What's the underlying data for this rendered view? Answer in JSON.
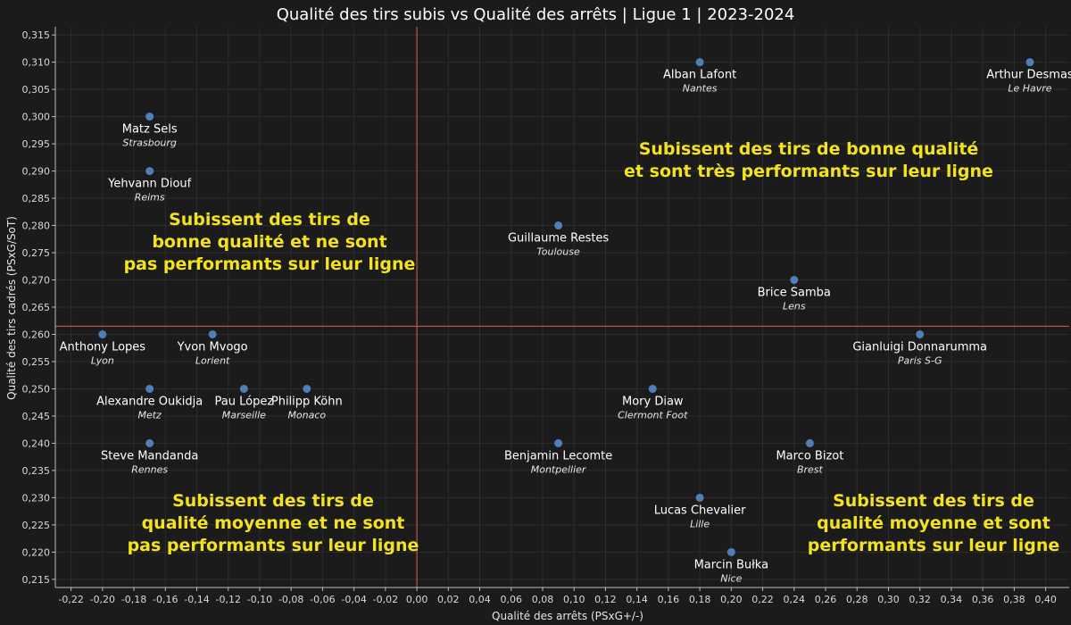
{
  "chart_data": {
    "type": "scatter",
    "title": "Qualité des tirs subis vs Qualité des arrêts | Ligue 1 | 2023-2024",
    "xlabel": "Qualité des arrêts (PSxG+/-)",
    "ylabel": "Qualité des tirs cadrés (PSxG/SoT)",
    "xlim": [
      -0.23,
      0.415
    ],
    "ylim": [
      0.2135,
      0.3165
    ],
    "x_ticks": [
      "-0,22",
      "-0,20",
      "-0,18",
      "-0,16",
      "-0,14",
      "-0,12",
      "-0,10",
      "-0,08",
      "-0,06",
      "-0,04",
      "-0,02",
      "0,00",
      "0,02",
      "0,04",
      "0,06",
      "0,08",
      "0,10",
      "0,12",
      "0,14",
      "0,16",
      "0,18",
      "0,20",
      "0,22",
      "0,24",
      "0,26",
      "0,28",
      "0,30",
      "0,32",
      "0,34",
      "0,36",
      "0,38",
      "0,40"
    ],
    "y_ticks": [
      "0,215",
      "0,220",
      "0,225",
      "0,230",
      "0,235",
      "0,240",
      "0,245",
      "0,250",
      "0,255",
      "0,260",
      "0,265",
      "0,270",
      "0,275",
      "0,280",
      "0,285",
      "0,290",
      "0,295",
      "0,300",
      "0,305",
      "0,310",
      "0,315"
    ],
    "grid": true,
    "reference_lines": {
      "x": 0.0,
      "y": 0.2615
    },
    "point_color": "#4e7fb8",
    "reference_color": "#e05a5a",
    "points": [
      {
        "name": "Alban Lafont",
        "club": "Nantes",
        "x": 0.18,
        "y": 0.31
      },
      {
        "name": "Arthur Desmas",
        "club": "Le Havre",
        "x": 0.39,
        "y": 0.31
      },
      {
        "name": "Matz Sels",
        "club": "Strasbourg",
        "x": -0.17,
        "y": 0.3
      },
      {
        "name": "Yehvann Diouf",
        "club": "Reims",
        "x": -0.17,
        "y": 0.29
      },
      {
        "name": "Guillaume Restes",
        "club": "Toulouse",
        "x": 0.09,
        "y": 0.28
      },
      {
        "name": "Brice Samba",
        "club": "Lens",
        "x": 0.24,
        "y": 0.27
      },
      {
        "name": "Anthony Lopes",
        "club": "Lyon",
        "x": -0.2,
        "y": 0.26
      },
      {
        "name": "Yvon Mvogo",
        "club": "Lorient",
        "x": -0.13,
        "y": 0.26
      },
      {
        "name": "Gianluigi Donnarumma",
        "club": "Paris S-G",
        "x": 0.32,
        "y": 0.26
      },
      {
        "name": "Alexandre Oukidja",
        "club": "Metz",
        "x": -0.17,
        "y": 0.25
      },
      {
        "name": "Pau López",
        "club": "Marseille",
        "x": -0.11,
        "y": 0.25
      },
      {
        "name": "Philipp Köhn",
        "club": "Monaco",
        "x": -0.07,
        "y": 0.25
      },
      {
        "name": "Mory Diaw",
        "club": "Clermont Foot",
        "x": 0.15,
        "y": 0.25
      },
      {
        "name": "Steve Mandanda",
        "club": "Rennes",
        "x": -0.17,
        "y": 0.24
      },
      {
        "name": "Benjamin Lecomte",
        "club": "Montpellier",
        "x": 0.09,
        "y": 0.24
      },
      {
        "name": "Marco Bizot",
        "club": "Brest",
        "x": 0.25,
        "y": 0.24
      },
      {
        "name": "Lucas Chevalier",
        "club": "Lille",
        "x": 0.18,
        "y": 0.23
      },
      {
        "name": "Marcin Bułka",
        "club": "Nice",
        "x": 0.2,
        "y": 0.22
      }
    ],
    "annotations": [
      {
        "id": "top-left",
        "lines": [
          "Subissent des tirs de",
          "bonne qualité et ne sont",
          "pas performants sur leur ligne"
        ]
      },
      {
        "id": "top-right",
        "lines": [
          "Subissent des tirs de bonne qualité",
          "et sont très performants sur leur ligne"
        ]
      },
      {
        "id": "bottom-left",
        "lines": [
          "Subissent des tirs de",
          "qualité moyenne et ne sont",
          "pas performants sur leur  ligne"
        ]
      },
      {
        "id": "bottom-right",
        "lines": [
          "Subissent des tirs de",
          "qualité moyenne et sont",
          "performants sur leur ligne"
        ]
      }
    ]
  }
}
